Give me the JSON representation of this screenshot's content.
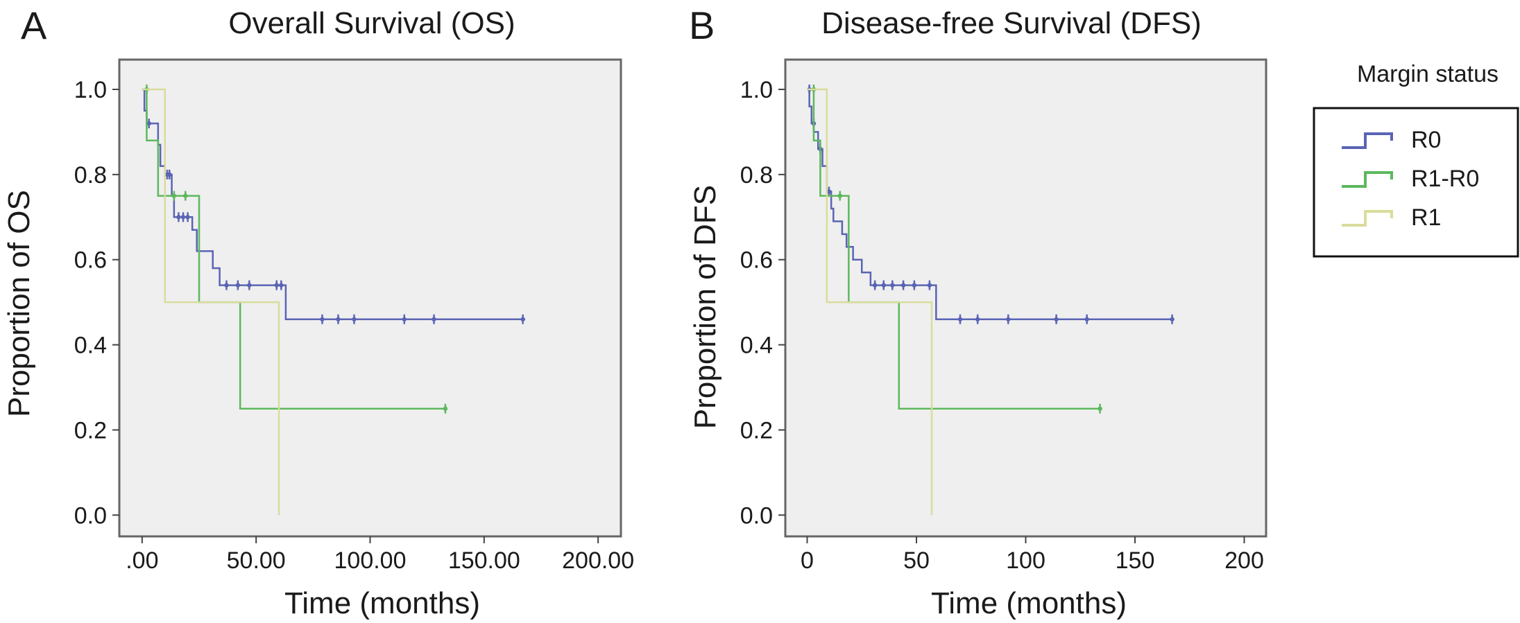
{
  "legend": {
    "title": "Margin status",
    "items": [
      {
        "label": "R0",
        "color": "#5a64b4"
      },
      {
        "label": "R1-R0",
        "color": "#5cb85c"
      },
      {
        "label": "R1",
        "color": "#d9dc9c"
      }
    ]
  },
  "chart_data": [
    {
      "type": "line",
      "subtype": "kaplan-meier step",
      "panel_label": "A",
      "title": "Overall Survival (OS)",
      "xlabel": "Time (months)",
      "ylabel": "Proportion of OS",
      "xlim": [
        -10,
        210
      ],
      "ylim": [
        -0.05,
        1.07
      ],
      "x_ticks": [
        0,
        50,
        100,
        150,
        200
      ],
      "x_tick_labels": [
        ".00",
        "50.00",
        "100.00",
        "150.00",
        "200.00"
      ],
      "y_ticks": [
        0,
        0.2,
        0.4,
        0.6,
        0.8,
        1.0
      ],
      "y_tick_labels": [
        "0.0",
        "0.2",
        "0.4",
        "0.6",
        "0.8",
        "1.0"
      ],
      "grid": false,
      "series": [
        {
          "name": "R0",
          "color": "#5a64b4",
          "steps": [
            [
              0,
              1.0
            ],
            [
              1,
              0.95
            ],
            [
              2,
              0.92
            ],
            [
              7,
              0.87
            ],
            [
              8,
              0.82
            ],
            [
              10,
              0.8
            ],
            [
              13,
              0.75
            ],
            [
              14,
              0.7
            ],
            [
              22,
              0.67
            ],
            [
              24,
              0.62
            ],
            [
              31,
              0.58
            ],
            [
              34,
              0.54
            ],
            [
              63,
              0.46
            ],
            [
              168,
              0.46
            ]
          ],
          "censored": [
            [
              3,
              0.92
            ],
            [
              11,
              0.8
            ],
            [
              12,
              0.8
            ],
            [
              16,
              0.7
            ],
            [
              18,
              0.7
            ],
            [
              20,
              0.7
            ],
            [
              37,
              0.54
            ],
            [
              42,
              0.54
            ],
            [
              47,
              0.54
            ],
            [
              59,
              0.54
            ],
            [
              61,
              0.54
            ],
            [
              79,
              0.46
            ],
            [
              86,
              0.46
            ],
            [
              93,
              0.46
            ],
            [
              115,
              0.46
            ],
            [
              128,
              0.46
            ],
            [
              167,
              0.46
            ]
          ]
        },
        {
          "name": "R1-R0",
          "color": "#5cb85c",
          "steps": [
            [
              0,
              1.0
            ],
            [
              2,
              0.88
            ],
            [
              7,
              0.75
            ],
            [
              12,
              0.75
            ],
            [
              25,
              0.5
            ],
            [
              43,
              0.25
            ],
            [
              133,
              0.25
            ]
          ],
          "censored": [
            [
              2,
              1.0
            ],
            [
              14,
              0.75
            ],
            [
              19,
              0.75
            ],
            [
              133,
              0.25
            ]
          ]
        },
        {
          "name": "R1",
          "color": "#d9dc9c",
          "steps": [
            [
              0,
              1.0
            ],
            [
              10,
              0.5
            ],
            [
              60,
              0.0
            ]
          ],
          "censored": []
        }
      ]
    },
    {
      "type": "line",
      "subtype": "kaplan-meier step",
      "panel_label": "B",
      "title": "Disease-free Survival (DFS)",
      "xlabel": "Time (months)",
      "ylabel": "Proportion of DFS",
      "xlim": [
        -10,
        210
      ],
      "ylim": [
        -0.05,
        1.07
      ],
      "x_ticks": [
        0,
        50,
        100,
        150,
        200
      ],
      "x_tick_labels": [
        "0",
        "50",
        "100",
        "150",
        "200"
      ],
      "y_ticks": [
        0,
        0.2,
        0.4,
        0.6,
        0.8,
        1.0
      ],
      "y_tick_labels": [
        "0.0",
        "0.2",
        "0.4",
        "0.6",
        "0.8",
        "1.0"
      ],
      "grid": false,
      "series": [
        {
          "name": "R0",
          "color": "#5a64b4",
          "steps": [
            [
              0,
              1.0
            ],
            [
              1,
              0.96
            ],
            [
              2,
              0.92
            ],
            [
              3,
              0.9
            ],
            [
              5,
              0.86
            ],
            [
              7,
              0.82
            ],
            [
              9,
              0.76
            ],
            [
              11,
              0.72
            ],
            [
              12,
              0.69
            ],
            [
              16,
              0.66
            ],
            [
              18,
              0.63
            ],
            [
              21,
              0.6
            ],
            [
              25,
              0.57
            ],
            [
              29,
              0.54
            ],
            [
              59,
              0.46
            ],
            [
              168,
              0.46
            ]
          ],
          "censored": [
            [
              1,
              1.0
            ],
            [
              3,
              0.92
            ],
            [
              6,
              0.86
            ],
            [
              10,
              0.76
            ],
            [
              31,
              0.54
            ],
            [
              35,
              0.54
            ],
            [
              39,
              0.54
            ],
            [
              44,
              0.54
            ],
            [
              49,
              0.54
            ],
            [
              56,
              0.54
            ],
            [
              70,
              0.46
            ],
            [
              78,
              0.46
            ],
            [
              92,
              0.46
            ],
            [
              114,
              0.46
            ],
            [
              128,
              0.46
            ],
            [
              167,
              0.46
            ]
          ]
        },
        {
          "name": "R1-R0",
          "color": "#5cb85c",
          "steps": [
            [
              0,
              1.0
            ],
            [
              3,
              0.88
            ],
            [
              6,
              0.75
            ],
            [
              13,
              0.75
            ],
            [
              19,
              0.5
            ],
            [
              42,
              0.25
            ],
            [
              134,
              0.25
            ]
          ],
          "censored": [
            [
              3,
              1.0
            ],
            [
              15,
              0.75
            ],
            [
              134,
              0.25
            ]
          ]
        },
        {
          "name": "R1",
          "color": "#d9dc9c",
          "steps": [
            [
              0,
              1.0
            ],
            [
              9,
              0.5
            ],
            [
              57,
              0.0
            ]
          ],
          "censored": []
        }
      ]
    }
  ]
}
